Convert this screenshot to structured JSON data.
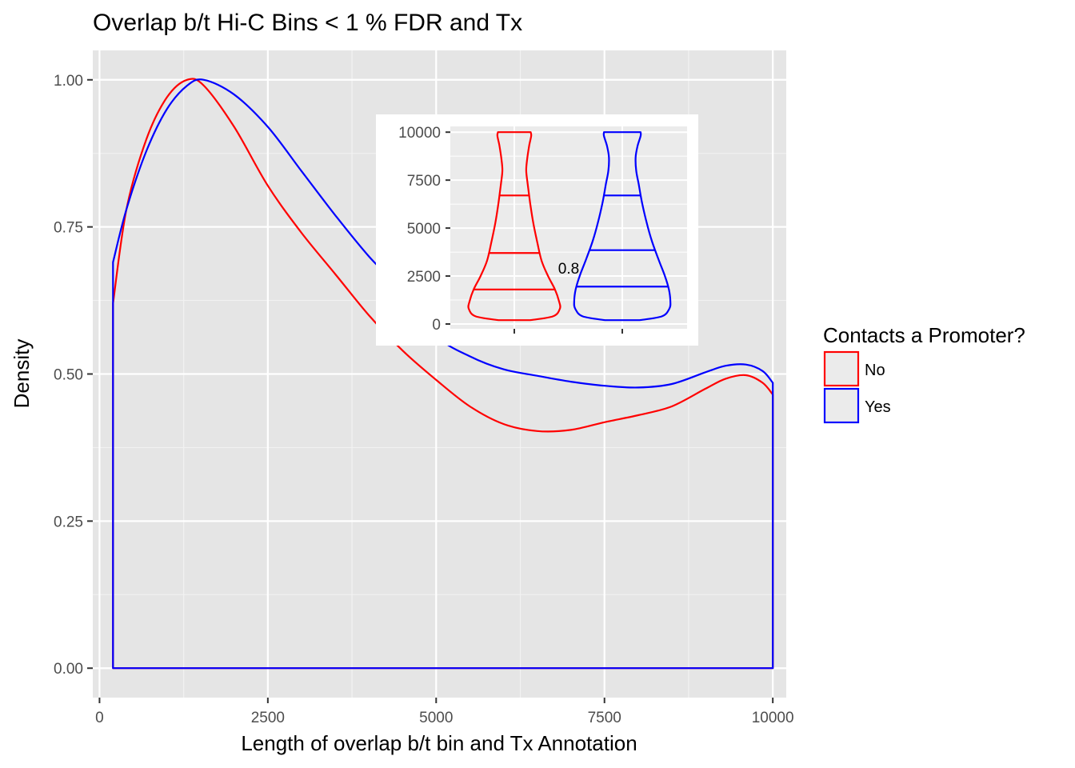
{
  "chart_data": [
    {
      "type": "density",
      "title": "Overlap b/t Hi-C Bins < 1 % FDR and Tx",
      "xlabel": "Length of overlap b/t bin and Tx Annotation",
      "ylabel": "Density",
      "xlim": [
        -100,
        10200
      ],
      "ylim": [
        -0.05,
        1.05
      ],
      "x_ticks": [
        0,
        2500,
        5000,
        7500,
        10000
      ],
      "x_tick_labels": [
        "0",
        "2500",
        "5000",
        "7500",
        "10000"
      ],
      "y_ticks": [
        0,
        0.25,
        0.5,
        0.75,
        1.0
      ],
      "y_tick_labels": [
        "0.00",
        "0.25",
        "0.50",
        "0.75",
        "1.00"
      ],
      "grid": true,
      "legend": {
        "title": "Contacts a Promoter?",
        "position": "right",
        "entries": [
          {
            "label": "No",
            "color": "#ff0000"
          },
          {
            "label": "Yes",
            "color": "#0000ff"
          }
        ]
      },
      "series": [
        {
          "name": "No",
          "color": "#ff0000",
          "x": [
            200,
            400,
            700,
            1000,
            1300,
            1550,
            2000,
            2500,
            3000,
            3500,
            4000,
            4500,
            5000,
            5500,
            6000,
            6500,
            7000,
            7500,
            8000,
            8500,
            9000,
            9300,
            9600,
            9850,
            10000
          ],
          "y": [
            0.62,
            0.78,
            0.9,
            0.97,
            1.0,
            0.99,
            0.92,
            0.82,
            0.74,
            0.67,
            0.6,
            0.54,
            0.49,
            0.445,
            0.415,
            0.403,
            0.405,
            0.418,
            0.43,
            0.445,
            0.475,
            0.492,
            0.498,
            0.485,
            0.465
          ]
        },
        {
          "name": "Yes",
          "color": "#0000ff",
          "x": [
            200,
            400,
            700,
            1000,
            1300,
            1550,
            2000,
            2500,
            3000,
            3500,
            4000,
            4500,
            5000,
            5500,
            6000,
            6500,
            7000,
            7500,
            8000,
            8500,
            9000,
            9300,
            9600,
            9850,
            10000
          ],
          "y": [
            0.69,
            0.78,
            0.88,
            0.95,
            0.99,
            1.0,
            0.975,
            0.92,
            0.845,
            0.77,
            0.7,
            0.64,
            0.565,
            0.53,
            0.508,
            0.497,
            0.487,
            0.48,
            0.477,
            0.483,
            0.503,
            0.514,
            0.516,
            0.505,
            0.485
          ]
        }
      ]
    },
    {
      "type": "violin",
      "inset": true,
      "ylim": [
        -250,
        10300
      ],
      "y_ticks": [
        0,
        2500,
        5000,
        7500,
        10000
      ],
      "y_tick_labels": [
        "0",
        "2500",
        "5000",
        "7500",
        "10000"
      ],
      "annotation": "0.8",
      "grid": true,
      "series": [
        {
          "name": "No",
          "color": "#ff0000",
          "min": 200,
          "max": 10000,
          "quantiles": [
            1800,
            3700,
            6700
          ],
          "profile_y": [
            200,
            400,
            800,
            1200,
            1800,
            2500,
            3300,
            4300,
            5300,
            6300,
            7300,
            8000,
            8600,
            9300,
            9800,
            10000
          ],
          "profile_w": [
            0.32,
            0.78,
            0.92,
            0.9,
            0.82,
            0.68,
            0.55,
            0.46,
            0.38,
            0.32,
            0.27,
            0.24,
            0.26,
            0.3,
            0.34,
            0.33
          ]
        },
        {
          "name": "Yes",
          "color": "#0000ff",
          "min": 200,
          "max": 10000,
          "quantiles": [
            1950,
            3850,
            6700
          ],
          "profile_y": [
            200,
            400,
            800,
            1200,
            1800,
            2500,
            3300,
            4300,
            5300,
            6300,
            7300,
            8000,
            8700,
            9300,
            9800,
            10000
          ],
          "profile_w": [
            0.35,
            0.8,
            0.95,
            0.97,
            0.94,
            0.86,
            0.74,
            0.6,
            0.49,
            0.4,
            0.33,
            0.28,
            0.27,
            0.31,
            0.37,
            0.37
          ]
        }
      ]
    }
  ]
}
